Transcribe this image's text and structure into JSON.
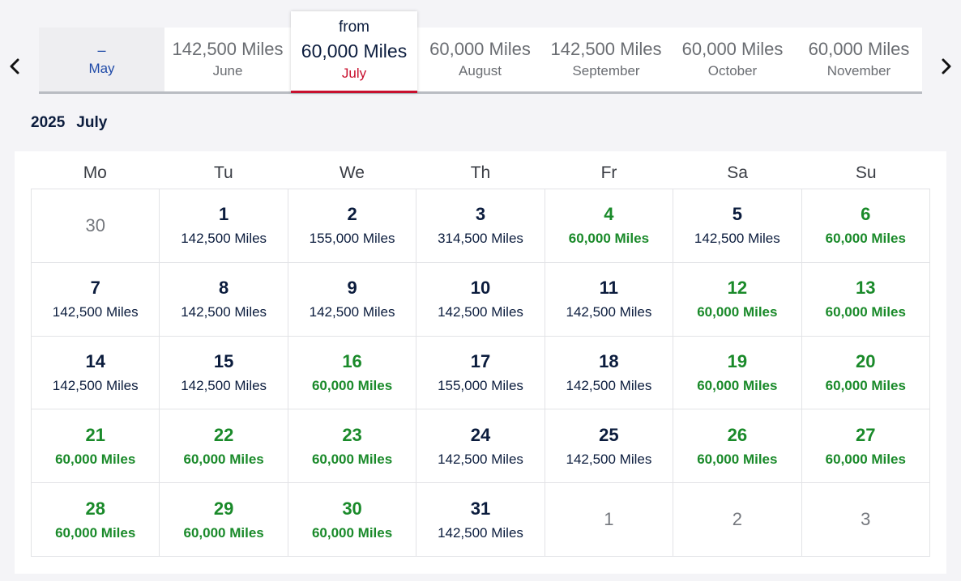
{
  "month_tabs": [
    {
      "miles": "–",
      "month": "May",
      "state": "disabled"
    },
    {
      "miles": "142,500 Miles",
      "month": "June",
      "state": "normal"
    },
    {
      "from": "from",
      "miles": "60,000 Miles",
      "month": "July",
      "state": "active"
    },
    {
      "miles": "60,000 Miles",
      "month": "August",
      "state": "normal"
    },
    {
      "miles": "142,500 Miles",
      "month": "September",
      "state": "normal"
    },
    {
      "miles": "60,000 Miles",
      "month": "October",
      "state": "normal"
    },
    {
      "miles": "60,000 Miles",
      "month": "November",
      "state": "normal"
    }
  ],
  "nav": {
    "prev_icon": "chevron-left-icon",
    "next_icon": "chevron-right-icon"
  },
  "heading": {
    "year": "2025",
    "month": "July"
  },
  "colors": {
    "low_price": "#1a8a2a",
    "active_underline": "#c8102e",
    "text": "#0b1c3d",
    "disabled_text": "#1f4aa8"
  },
  "calendar": {
    "weekdays": [
      "Mo",
      "Tu",
      "We",
      "Th",
      "Fr",
      "Sa",
      "Su"
    ],
    "weeks": [
      [
        {
          "day": "30",
          "price": "",
          "type": "other"
        },
        {
          "day": "1",
          "price": "142,500 Miles",
          "type": "normal"
        },
        {
          "day": "2",
          "price": "155,000 Miles",
          "type": "normal"
        },
        {
          "day": "3",
          "price": "314,500 Miles",
          "type": "normal"
        },
        {
          "day": "4",
          "price": "60,000 Miles",
          "type": "low"
        },
        {
          "day": "5",
          "price": "142,500 Miles",
          "type": "normal"
        },
        {
          "day": "6",
          "price": "60,000 Miles",
          "type": "low"
        }
      ],
      [
        {
          "day": "7",
          "price": "142,500 Miles",
          "type": "normal"
        },
        {
          "day": "8",
          "price": "142,500 Miles",
          "type": "normal"
        },
        {
          "day": "9",
          "price": "142,500 Miles",
          "type": "normal"
        },
        {
          "day": "10",
          "price": "142,500 Miles",
          "type": "normal"
        },
        {
          "day": "11",
          "price": "142,500 Miles",
          "type": "normal"
        },
        {
          "day": "12",
          "price": "60,000 Miles",
          "type": "low"
        },
        {
          "day": "13",
          "price": "60,000 Miles",
          "type": "low"
        }
      ],
      [
        {
          "day": "14",
          "price": "142,500 Miles",
          "type": "normal"
        },
        {
          "day": "15",
          "price": "142,500 Miles",
          "type": "normal"
        },
        {
          "day": "16",
          "price": "60,000 Miles",
          "type": "low"
        },
        {
          "day": "17",
          "price": "155,000 Miles",
          "type": "normal"
        },
        {
          "day": "18",
          "price": "142,500 Miles",
          "type": "normal"
        },
        {
          "day": "19",
          "price": "60,000 Miles",
          "type": "low"
        },
        {
          "day": "20",
          "price": "60,000 Miles",
          "type": "low"
        }
      ],
      [
        {
          "day": "21",
          "price": "60,000 Miles",
          "type": "low"
        },
        {
          "day": "22",
          "price": "60,000 Miles",
          "type": "low"
        },
        {
          "day": "23",
          "price": "60,000 Miles",
          "type": "low"
        },
        {
          "day": "24",
          "price": "142,500 Miles",
          "type": "normal"
        },
        {
          "day": "25",
          "price": "142,500 Miles",
          "type": "normal"
        },
        {
          "day": "26",
          "price": "60,000 Miles",
          "type": "low"
        },
        {
          "day": "27",
          "price": "60,000 Miles",
          "type": "low"
        }
      ],
      [
        {
          "day": "28",
          "price": "60,000 Miles",
          "type": "low"
        },
        {
          "day": "29",
          "price": "60,000 Miles",
          "type": "low"
        },
        {
          "day": "30",
          "price": "60,000 Miles",
          "type": "low"
        },
        {
          "day": "31",
          "price": "142,500 Miles",
          "type": "normal"
        },
        {
          "day": "1",
          "price": "",
          "type": "other"
        },
        {
          "day": "2",
          "price": "",
          "type": "other"
        },
        {
          "day": "3",
          "price": "",
          "type": "other"
        }
      ]
    ]
  }
}
